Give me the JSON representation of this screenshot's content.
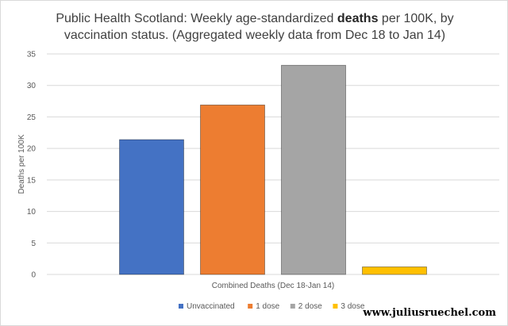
{
  "chart_data": {
    "type": "bar",
    "title_parts": [
      "Public Health Scotland: Weekly age-standardized ",
      "deaths",
      " per 100K, by vaccination status. (Aggregated weekly data from Dec 18 to Jan 14)"
    ],
    "ylabel": "Deaths per 100K",
    "xlabel": "",
    "categories": [
      "Combined Deaths (Dec 18-Jan 14)"
    ],
    "series": [
      {
        "name": "Unvaccinated",
        "values": [
          21.4
        ],
        "color": "#4472C4"
      },
      {
        "name": "1 dose",
        "values": [
          26.9
        ],
        "color": "#ED7D31"
      },
      {
        "name": "2 dose",
        "values": [
          33.2
        ],
        "color": "#A5A5A5"
      },
      {
        "name": "3 dose",
        "values": [
          1.2
        ],
        "color": "#FFC000"
      }
    ],
    "ylim": [
      0,
      35
    ],
    "yticks": [
      0,
      5,
      10,
      15,
      20,
      25,
      30,
      35
    ],
    "grid": true,
    "legend": "bottom"
  },
  "watermark": "www.juliusruechel.com"
}
